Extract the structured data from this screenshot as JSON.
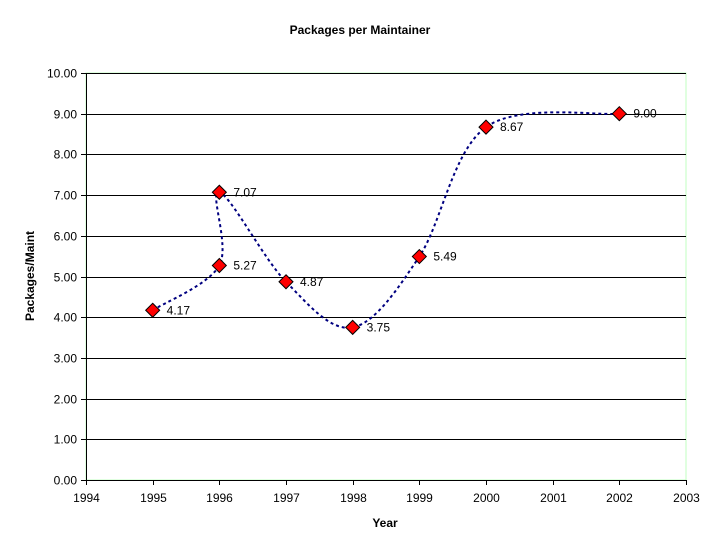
{
  "chart_data": {
    "type": "scatter",
    "title": "Packages per Maintainer",
    "xlabel": "Year",
    "ylabel": "Packages/Maint",
    "xlim": [
      1994,
      2003
    ],
    "ylim": [
      0,
      10
    ],
    "x_ticks": [
      "1994",
      "1995",
      "1996",
      "1997",
      "1998",
      "1999",
      "2000",
      "2001",
      "2002",
      "2003"
    ],
    "y_ticks": [
      "0.00",
      "1.00",
      "2.00",
      "3.00",
      "4.00",
      "5.00",
      "6.00",
      "7.00",
      "8.00",
      "9.00",
      "10.00"
    ],
    "grid": "horizontal",
    "series": [
      {
        "points": [
          {
            "x": 1995,
            "y": 4.17,
            "label": "4.17"
          },
          {
            "x": 1996,
            "y": 5.27,
            "label": "5.27"
          },
          {
            "x": 1996,
            "y": 7.07,
            "label": "7.07"
          },
          {
            "x": 1997,
            "y": 4.87,
            "label": "4.87"
          },
          {
            "x": 1998,
            "y": 3.75,
            "label": "3.75"
          },
          {
            "x": 1999,
            "y": 5.49,
            "label": "5.49"
          },
          {
            "x": 2000,
            "y": 8.67,
            "label": "8.67"
          },
          {
            "x": 2002,
            "y": 9.0,
            "label": "9.00"
          }
        ],
        "marker": "diamond",
        "marker_color": "#ff0000",
        "line_color": "#000080",
        "line_style": "dotted-smooth"
      }
    ],
    "plot_border_color": "#c0ffc0"
  }
}
